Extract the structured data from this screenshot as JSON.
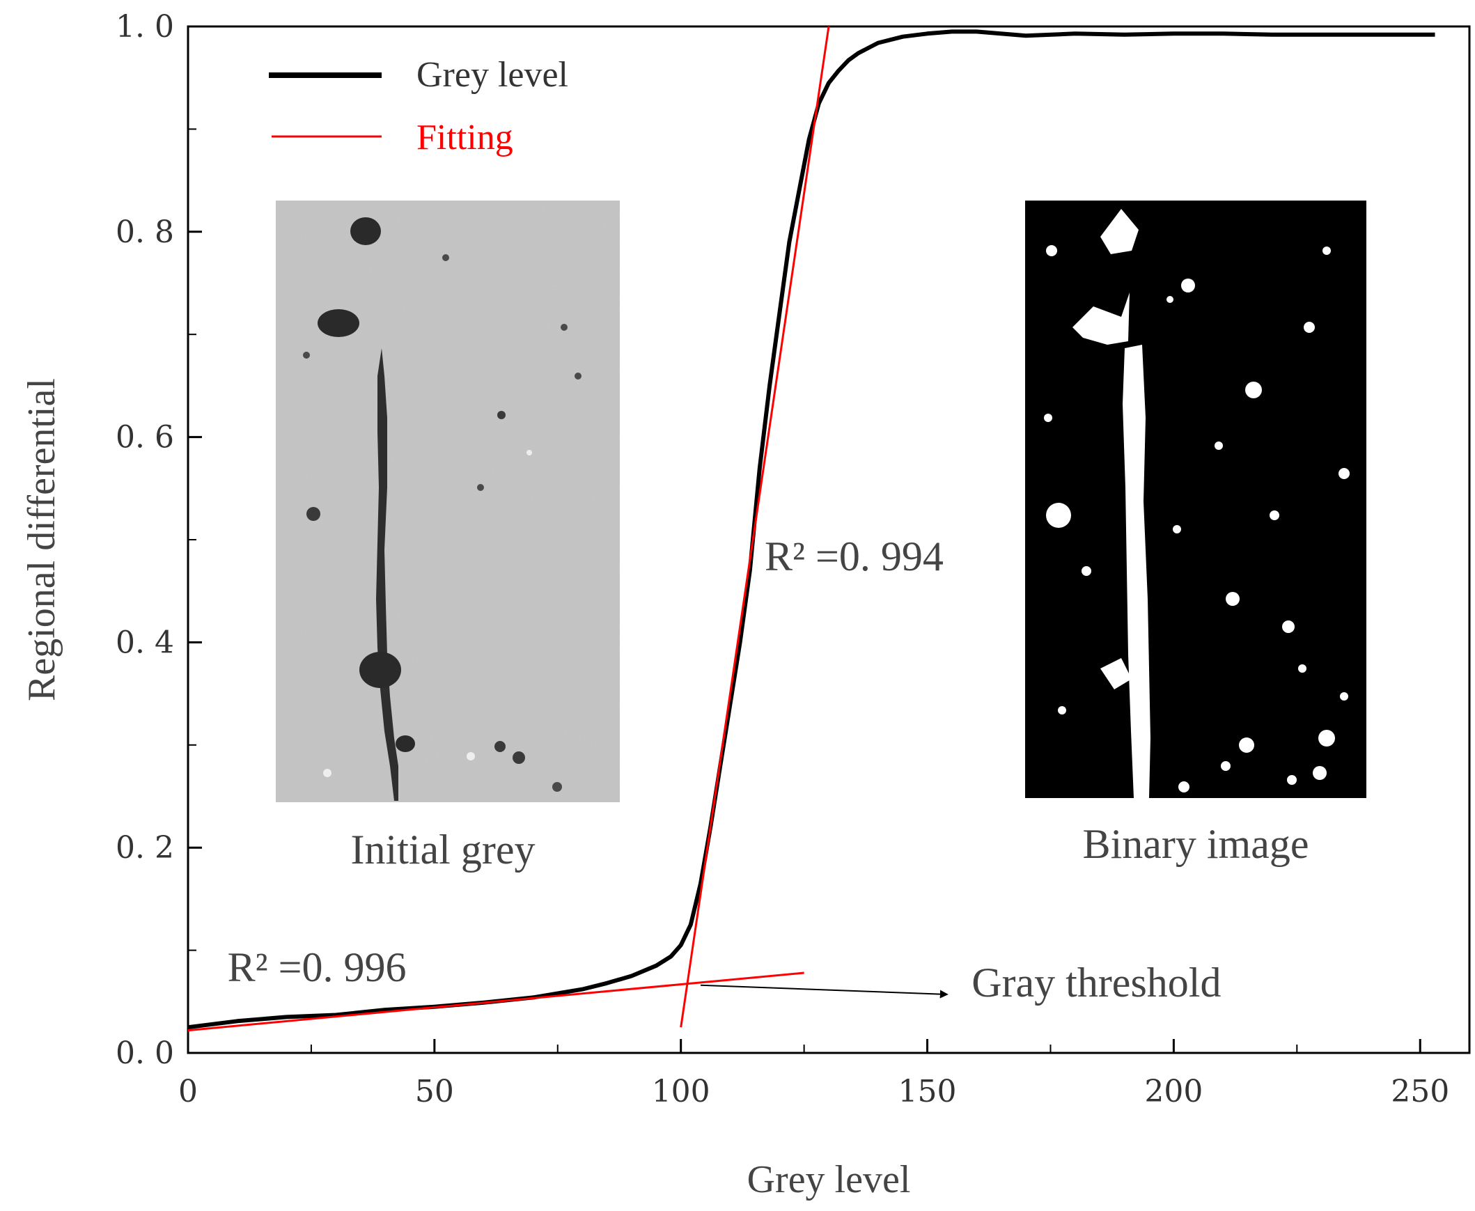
{
  "chart_data": {
    "type": "line",
    "xlabel": "Grey level",
    "ylabel": "Regional differential",
    "xlim": [
      0,
      260
    ],
    "ylim": [
      0.0,
      1.0
    ],
    "x_ticks": [
      0,
      50,
      100,
      150,
      200,
      250
    ],
    "x_tick_labels": [
      "0",
      "50",
      "100",
      "150",
      "200",
      "250"
    ],
    "y_ticks": [
      0.0,
      0.2,
      0.4,
      0.6,
      0.8,
      1.0
    ],
    "y_tick_labels": [
      "0. 0",
      "0. 2",
      "0. 4",
      "0. 6",
      "0. 8",
      "1. 0"
    ],
    "grid": false,
    "legend_position": "top-left",
    "series": [
      {
        "name": "Grey level",
        "color": "#000000",
        "x": [
          0,
          10,
          20,
          30,
          40,
          50,
          60,
          70,
          80,
          85,
          90,
          95,
          98,
          100,
          102,
          104,
          106,
          108,
          110,
          112,
          114,
          116,
          118,
          120,
          122,
          124,
          126,
          128,
          130,
          132,
          134,
          136,
          138,
          140,
          145,
          150,
          155,
          160,
          170,
          180,
          190,
          200,
          210,
          220,
          230,
          240,
          253
        ],
        "y": [
          0.025,
          0.031,
          0.035,
          0.037,
          0.042,
          0.045,
          0.049,
          0.054,
          0.062,
          0.068,
          0.075,
          0.085,
          0.094,
          0.105,
          0.125,
          0.165,
          0.22,
          0.28,
          0.34,
          0.4,
          0.47,
          0.57,
          0.65,
          0.72,
          0.79,
          0.84,
          0.89,
          0.925,
          0.945,
          0.957,
          0.967,
          0.974,
          0.979,
          0.984,
          0.99,
          0.993,
          0.995,
          0.995,
          0.991,
          0.993,
          0.992,
          0.993,
          0.993,
          0.992,
          0.992,
          0.992,
          0.992
        ]
      },
      {
        "name": "Fitting",
        "color": "#ff0000",
        "segments": [
          {
            "x": [
              0,
              125
            ],
            "y": [
              0.022,
              0.078
            ]
          },
          {
            "x": [
              100,
              130
            ],
            "y": [
              0.025,
              1.0
            ]
          }
        ]
      }
    ],
    "annotations": [
      {
        "text": "R² =0. 996",
        "x": 8,
        "y": 0.07
      },
      {
        "text": "R² =0. 994",
        "x": 117,
        "y": 0.47
      },
      {
        "text": "Gray threshold",
        "x": 159,
        "y": 0.055
      }
    ],
    "threshold_arrow": {
      "from": [
        104,
        0.066
      ],
      "to": [
        154,
        0.057
      ]
    },
    "insets": [
      {
        "caption": "Initial grey",
        "style": "greyscale"
      },
      {
        "caption": "Binary image",
        "style": "binary"
      }
    ]
  }
}
